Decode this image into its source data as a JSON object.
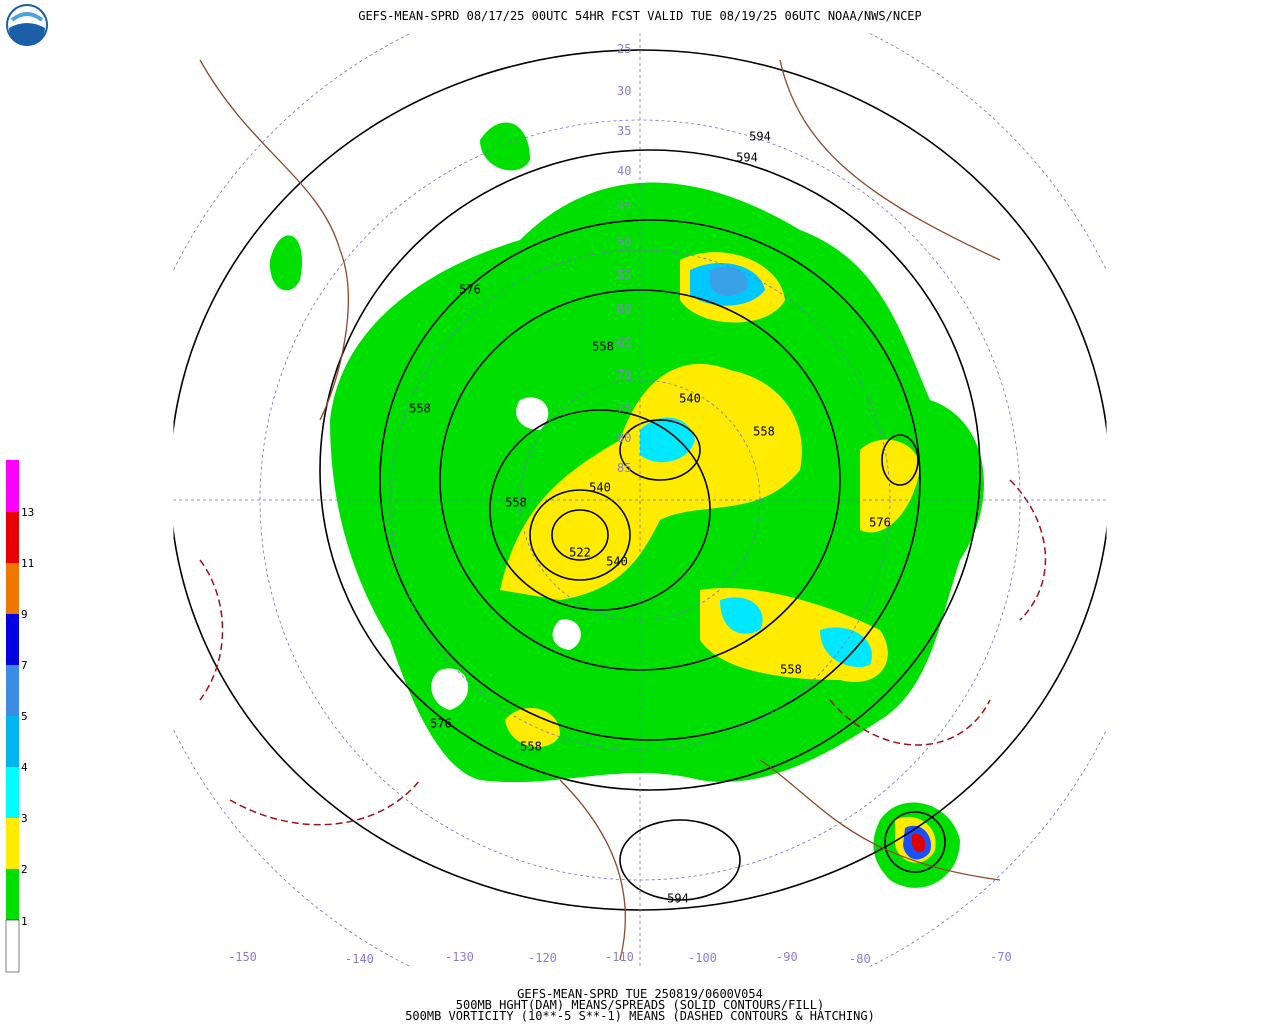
{
  "header": {
    "title": "GEFS-MEAN-SPRD 08/17/25 00UTC 54HR FCST VALID TUE 08/19/25 06UTC NOAA/NWS/NCEP"
  },
  "colorbar": {
    "labels": [
      1,
      2,
      3,
      4,
      5,
      7,
      9,
      11,
      13
    ]
  },
  "latitude_labels": [
    25,
    30,
    35,
    40,
    45,
    50,
    55,
    60,
    65,
    70,
    75,
    80,
    85
  ],
  "longitude_labels": [
    -150,
    -140,
    -130,
    -120,
    -110,
    -100,
    -90,
    -80,
    -70
  ],
  "contour_labels": [
    "594",
    "594",
    "576",
    "558",
    "558",
    "540",
    "558",
    "558",
    "540",
    "522",
    "540",
    "576",
    "558",
    "576",
    "558",
    "594"
  ],
  "footer": {
    "line1": "GEFS-MEAN-SPRD TUE 250819/0600V054",
    "line2": "500MB HGHT(DAM) MEANS/SPREADS (SOLID CONTOURS/FILL)",
    "line3": "500MB VORTICITY (10**-5 S**-1) MEANS (DASHED CONTOURS & HATCHING)"
  }
}
